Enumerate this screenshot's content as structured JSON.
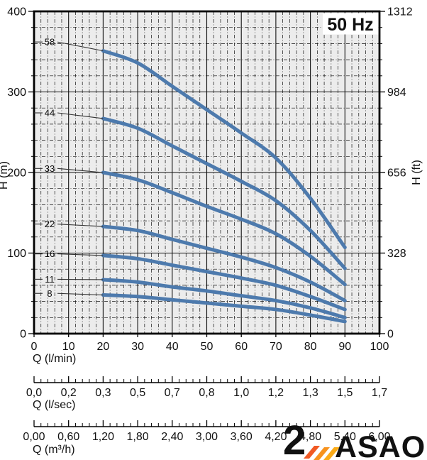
{
  "title": "50 Hz",
  "axes": {
    "left": {
      "label": "H (m)",
      "ticks": [
        "0",
        "100",
        "200",
        "300",
        "400"
      ]
    },
    "right": {
      "label": "H (ft)",
      "ticks": [
        "0",
        "328",
        "656",
        "984",
        "1312"
      ]
    },
    "q_lmin": {
      "label": "Q (l/min)",
      "ticks": [
        "0",
        "10",
        "20",
        "30",
        "40",
        "50",
        "60",
        "70",
        "80",
        "90",
        "100"
      ]
    },
    "q_lsec": {
      "label": "Q (l/sec)",
      "ticks": [
        "0,0",
        "0,2",
        "0,3",
        "0,5",
        "0,7",
        "0,8",
        "1,0",
        "1,2",
        "1,3",
        "1,5",
        "1,7"
      ]
    },
    "q_m3h": {
      "label": "Q (m³/h)",
      "ticks": [
        "0,00",
        "0,60",
        "1,20",
        "1,80",
        "2,40",
        "3,00",
        "3,60",
        "4,20",
        "4,80",
        "5,40",
        "6,00"
      ]
    }
  },
  "chart_data": {
    "type": "line",
    "title": "50 Hz",
    "xlabel": "Q (l/min)",
    "ylabel": "H (m)",
    "xlim": [
      0,
      100
    ],
    "ylim": [
      0,
      400
    ],
    "y2label": "H (ft)",
    "y2lim": [
      0,
      1312
    ],
    "grid": "major solid / minor dash-dot",
    "x": [
      20,
      30,
      40,
      50,
      60,
      70,
      80,
      90
    ],
    "series": [
      {
        "name": "58",
        "label_h": 362,
        "values": [
          351,
          336,
          307,
          278,
          249,
          218,
          168,
          107
        ]
      },
      {
        "name": "44",
        "label_h": 274,
        "values": [
          267,
          255,
          233,
          211,
          189,
          165,
          128,
          81
        ]
      },
      {
        "name": "33",
        "label_h": 205,
        "values": [
          200,
          191,
          175,
          158,
          142,
          124,
          96,
          61
        ]
      },
      {
        "name": "22",
        "label_h": 136,
        "values": [
          133,
          128,
          117,
          106,
          95,
          82,
          64,
          41
        ]
      },
      {
        "name": "16",
        "label_h": 99,
        "values": [
          97,
          93,
          85,
          77,
          69,
          60,
          46,
          30
        ]
      },
      {
        "name": "11",
        "label_h": 67.5,
        "values": [
          67,
          64,
          58,
          53,
          47,
          41,
          32,
          20
        ]
      },
      {
        "name": "8",
        "label_h": 50,
        "values": [
          48,
          46,
          42,
          38,
          34,
          30,
          23,
          15
        ]
      }
    ]
  },
  "colors": {
    "curve": "#4d7aad",
    "plot_bg": "#ececec",
    "grid": "#111111",
    "leader": "#333333",
    "logo_text": "#1d3d6e",
    "logo_icon": [
      "#ee4423",
      "#f15a24",
      "#f7931e",
      "#fbab18"
    ]
  },
  "logo": {
    "text": "ASAO",
    "icon": "orange-2-with-stripes"
  }
}
